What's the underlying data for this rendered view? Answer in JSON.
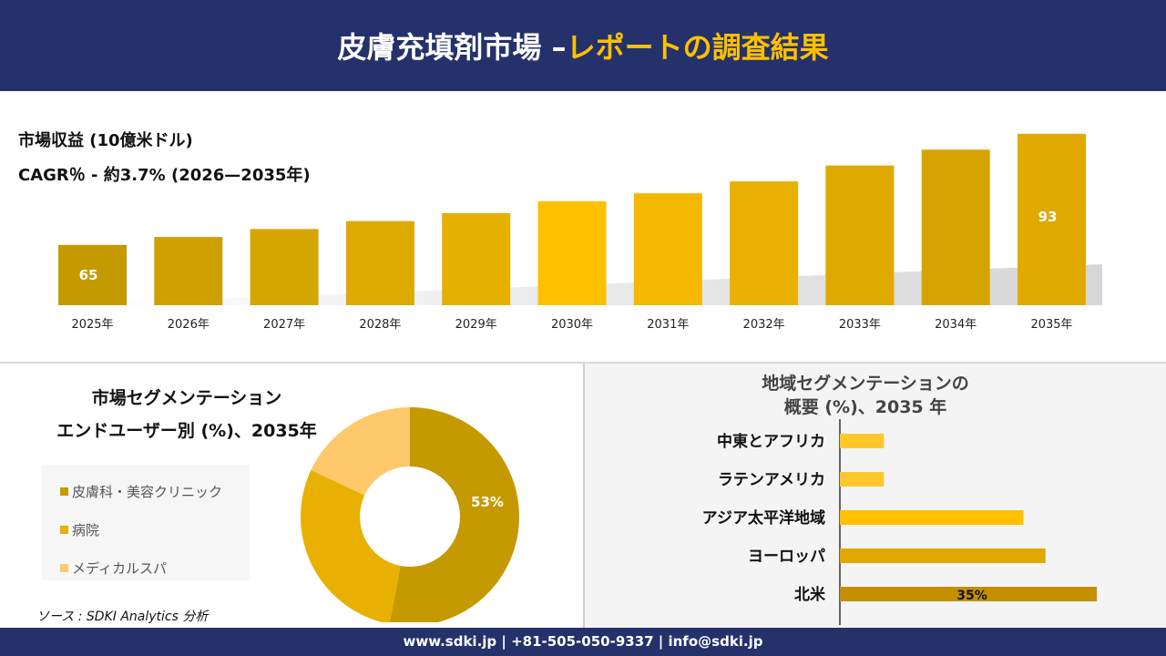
{
  "header": {
    "title_white": "皮膚充填剤市場 –",
    "title_yellow": "レポートの調査結果"
  },
  "revenue": {
    "label": "市場収益 (10億米ドル)",
    "cagr": "CAGR％ - 約3.7% (2026—2035年)"
  },
  "chart_data": [
    {
      "type": "bar",
      "categories": [
        "2025年",
        "2026年",
        "2027年",
        "2028年",
        "2029年",
        "2030年",
        "2031年",
        "2032年",
        "2033年",
        "2034年",
        "2035年"
      ],
      "values": [
        65,
        67,
        69,
        71,
        73,
        76,
        78,
        81,
        85,
        89,
        93
      ],
      "data_labels": {
        "0": "65",
        "10": "93"
      },
      "ylabel": "市場収益 (10億米ドル)"
    },
    {
      "type": "pie",
      "title": "市場セグメンテーション エンドユーザー別 (%)、2035年",
      "categories": [
        "皮膚科・美容クリニック",
        "病院",
        "メディカルスパ"
      ],
      "values": [
        53,
        29,
        18
      ],
      "colors": [
        "#c49a00",
        "#e8b000",
        "#ffc96b"
      ],
      "data_labels": {
        "0": "53%"
      },
      "legend": "left"
    },
    {
      "type": "bar",
      "orientation": "horizontal",
      "title": "地域セグメンテーションの概要 (%)、2035 年",
      "categories": [
        "中東とアフリカ",
        "ラテンアメリカ",
        "アジア太平洋地域",
        "ヨーロッパ",
        "北米"
      ],
      "values": [
        6,
        6,
        25,
        28,
        35
      ],
      "colors": [
        "#ffc72c",
        "#ffc72c",
        "#ffc000",
        "#e0a800",
        "#c49000"
      ],
      "data_labels": {
        "4": "35%"
      }
    }
  ],
  "segment": {
    "title1": "市場セグメンテーション",
    "title2": "エンドユーザー別 (%)、2035年"
  },
  "region": {
    "title1": "地域セグメンテーションの",
    "title2": "概要 (%)、2035 年"
  },
  "source": "ソース : SDKI Analytics 分析",
  "footer": "www.sdki.jp | +81-505-050-9337 | info@sdki.jp"
}
